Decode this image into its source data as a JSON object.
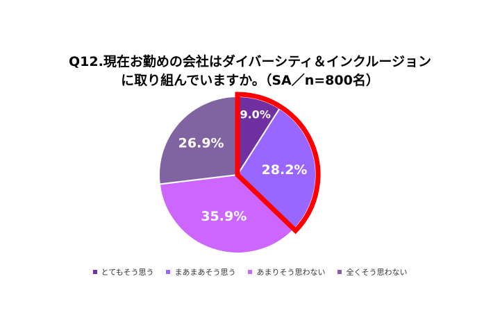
{
  "title": {
    "line1": "Q12.現在お勤めの会社はダイバーシティ＆インクルージョン",
    "line2": "に取り組んでいますか。（SA／n=800名）"
  },
  "chart_data": {
    "type": "pie",
    "categories": [
      "とてもそう思う",
      "まあまあそう思う",
      "あまりそう思わない",
      "全くそう思わない"
    ],
    "values": [
      9.0,
      28.2,
      35.9,
      26.9
    ],
    "data_labels": [
      "9.0%",
      "28.2%",
      "35.9%",
      "26.9%"
    ],
    "colors": [
      "#7030A0",
      "#9966FF",
      "#CC66FF",
      "#8064A2"
    ],
    "highlight": {
      "slices": [
        0,
        1
      ],
      "color": "#FF0000"
    },
    "start_angle": "12 o'clock, clockwise",
    "legend_position": "bottom"
  }
}
